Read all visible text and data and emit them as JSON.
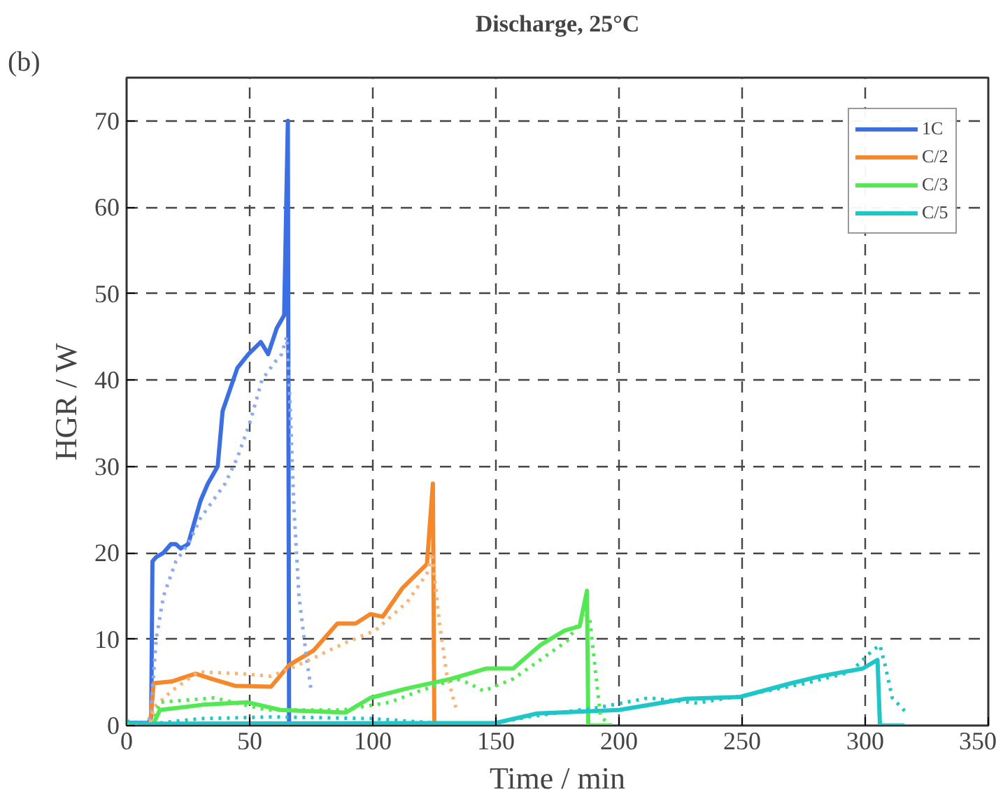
{
  "chart_data": {
    "type": "line",
    "title": "Discharge, 25°C",
    "xlabel": "Time / min",
    "ylabel": "HGR / W",
    "annotations": [
      "(b)"
    ],
    "xlim": [
      0,
      350
    ],
    "ylim": [
      0,
      75
    ],
    "xticks": [
      0,
      50,
      100,
      150,
      200,
      250,
      300,
      350
    ],
    "yticks": [
      0,
      10,
      20,
      30,
      40,
      50,
      60,
      70
    ],
    "grid": true,
    "legend": "top right",
    "marker": "none",
    "series": [
      {
        "name": "1C",
        "color": "#3c6fe2",
        "line_style": "solid",
        "x": [
          0,
          9,
          10,
          10.5,
          12,
          15,
          18,
          20,
          22,
          25,
          28,
          30,
          33,
          35,
          37,
          39,
          45,
          49.5,
          54.5,
          57.5,
          61,
          64,
          65.5,
          66,
          70,
          75
        ],
        "values": [
          0.3,
          0.3,
          1,
          19,
          19.5,
          20,
          21,
          21,
          20.5,
          21,
          24,
          26,
          28,
          29,
          30,
          36.4,
          41.4,
          43,
          44.4,
          43,
          46,
          47.5,
          70,
          0,
          0,
          0
        ]
      },
      {
        "name": "C/2",
        "color": "#f5882a",
        "line_style": "solid",
        "x": [
          0,
          9.6,
          11,
          18.3,
          28,
          34.6,
          44,
          58.7,
          66,
          76,
          85.6,
          93,
          99,
          104,
          112,
          122,
          124.4,
          125,
          133
        ],
        "values": [
          0.2,
          0.2,
          4.9,
          5.1,
          6,
          5.4,
          4.6,
          4.5,
          7,
          8.7,
          11.8,
          11.8,
          12.9,
          12.6,
          15.9,
          18.7,
          28,
          0,
          0
        ]
      },
      {
        "name": "C/3",
        "color": "#55e855",
        "line_style": "solid",
        "x": [
          0,
          10.6,
          13.5,
          30.8,
          49,
          62.5,
          89,
          99,
          114,
          131.7,
          146,
          157,
          168,
          178,
          184,
          187,
          187.5,
          197
        ],
        "values": [
          0.2,
          0,
          1.8,
          2.4,
          2.7,
          1.8,
          1.5,
          3.2,
          4.3,
          5.4,
          6.6,
          6.6,
          9.3,
          11,
          11.5,
          15.6,
          0,
          0
        ]
      },
      {
        "name": "C/5",
        "color": "#1fc6c8",
        "line_style": "solid",
        "x": [
          0,
          150,
          166.7,
          200,
          227,
          249,
          270,
          281.6,
          299,
          305,
          306,
          316
        ],
        "values": [
          0.2,
          0.3,
          1.4,
          1.8,
          3.1,
          3.3,
          4.9,
          5.7,
          6.6,
          7.6,
          0,
          0
        ]
      },
      {
        "color": "#8eaaf0",
        "line_style": "dotted",
        "x": [
          0,
          9,
          10,
          12,
          15,
          20,
          25,
          30,
          40,
          45,
          50,
          55,
          60,
          63,
          65,
          66,
          68,
          70,
          73,
          75
        ],
        "values": [
          0.3,
          0.3,
          2,
          10,
          15,
          19,
          21,
          24,
          28,
          31,
          35,
          40,
          42,
          43,
          45,
          40,
          25,
          15,
          8,
          4
        ]
      },
      {
        "color": "#f8b47a",
        "line_style": "dotted",
        "x": [
          0,
          9.6,
          11,
          18.3,
          29,
          47,
          58.7,
          72,
          89,
          101,
          114,
          122,
          124,
          127,
          130,
          133.7
        ],
        "values": [
          0.2,
          0.2,
          2.1,
          4,
          6.2,
          6,
          5.7,
          7.3,
          9.6,
          11,
          14.3,
          17.6,
          20,
          12,
          6,
          2.1
        ]
      },
      {
        "color": "#55e855",
        "line_style": "dotted",
        "x": [
          0,
          10.6,
          13.5,
          35.6,
          57,
          88,
          107,
          119,
          134,
          139,
          145,
          157,
          168,
          179,
          186,
          188,
          192.5,
          197
        ],
        "values": [
          0.2,
          0.2,
          2.7,
          3.2,
          1.8,
          1.8,
          2.7,
          4,
          5.4,
          4.9,
          4,
          5.4,
          7.6,
          9.8,
          12.9,
          12.6,
          1,
          0
        ]
      },
      {
        "color": "#1fc6c8",
        "line_style": "dotted",
        "x": [
          0,
          10,
          30,
          60,
          100,
          130,
          150,
          163,
          192,
          212,
          231.8,
          251,
          276,
          294,
          303,
          306,
          308,
          311,
          316
        ],
        "values": [
          0.5,
          0.2,
          0.8,
          1,
          0.8,
          0.2,
          0.3,
          1,
          2.1,
          3.2,
          2.6,
          3.5,
          4.9,
          6.2,
          8.7,
          9.3,
          7.1,
          3.2,
          1.7
        ]
      }
    ]
  }
}
